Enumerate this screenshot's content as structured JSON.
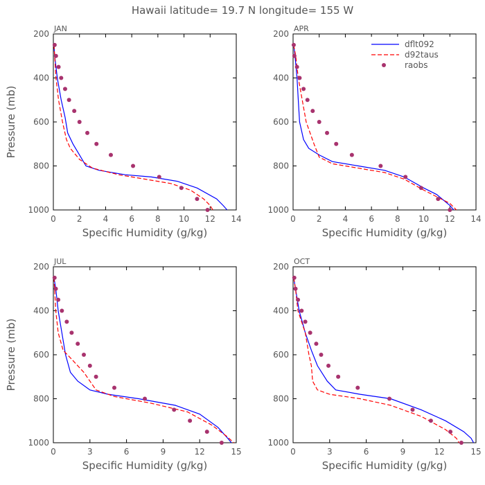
{
  "figure": {
    "title": "Hawaii  latitude= 19.7 N longitude= 155 W",
    "colors": {
      "dflt092": "#0000ff",
      "d92taus": "#ff0000",
      "raobs": "#a8336e"
    }
  },
  "chart_data": [
    {
      "type": "line",
      "month": "JAN",
      "xlabel": "Specific Humidity (g/kg)",
      "ylabel": "Pressure (mb)",
      "xlim": [
        0,
        14
      ],
      "ylim": [
        1000,
        200
      ],
      "xticks": [
        0,
        2,
        4,
        6,
        8,
        10,
        12,
        14
      ],
      "yticks": [
        200,
        400,
        600,
        800,
        1000
      ],
      "show_legend": false,
      "series": [
        {
          "name": "dflt092",
          "style": "solid",
          "points": [
            [
              0.05,
              250
            ],
            [
              0.1,
              300
            ],
            [
              0.3,
              400
            ],
            [
              0.6,
              500
            ],
            [
              0.9,
              580
            ],
            [
              1.1,
              650
            ],
            [
              1.5,
              700
            ],
            [
              2.0,
              750
            ],
            [
              2.5,
              800
            ],
            [
              3.5,
              820
            ],
            [
              5.5,
              840
            ],
            [
              7.5,
              850
            ],
            [
              9.5,
              870
            ],
            [
              11,
              900
            ],
            [
              12.5,
              950
            ],
            [
              13,
              980
            ],
            [
              13.3,
              1000
            ]
          ]
        },
        {
          "name": "d92taus",
          "style": "dashed",
          "points": [
            [
              0.05,
              250
            ],
            [
              0.1,
              300
            ],
            [
              0.2,
              400
            ],
            [
              0.4,
              500
            ],
            [
              0.7,
              600
            ],
            [
              1.0,
              680
            ],
            [
              1.3,
              720
            ],
            [
              2.0,
              770
            ],
            [
              3.0,
              810
            ],
            [
              5.0,
              840
            ],
            [
              7.0,
              860
            ],
            [
              9.0,
              880
            ],
            [
              10.5,
              910
            ],
            [
              11.5,
              950
            ],
            [
              12.0,
              980
            ],
            [
              12.2,
              1000
            ]
          ]
        },
        {
          "name": "raobs",
          "style": "markers",
          "points": [
            [
              0.1,
              250
            ],
            [
              0.2,
              300
            ],
            [
              0.4,
              350
            ],
            [
              0.6,
              400
            ],
            [
              0.9,
              450
            ],
            [
              1.2,
              500
            ],
            [
              1.6,
              550
            ],
            [
              2.0,
              600
            ],
            [
              2.6,
              650
            ],
            [
              3.3,
              700
            ],
            [
              4.4,
              750
            ],
            [
              6.1,
              800
            ],
            [
              8.1,
              850
            ],
            [
              9.8,
              900
            ],
            [
              11.0,
              950
            ],
            [
              11.8,
              1000
            ]
          ]
        }
      ]
    },
    {
      "type": "line",
      "month": "APR",
      "xlabel": "Specific Humidity (g/kg)",
      "ylabel": "",
      "xlim": [
        0,
        14
      ],
      "ylim": [
        1000,
        200
      ],
      "xticks": [
        0,
        2,
        4,
        6,
        8,
        10,
        12,
        14
      ],
      "yticks": [
        200,
        400,
        600,
        800,
        1000
      ],
      "show_legend": true,
      "series": [
        {
          "name": "dflt092",
          "style": "solid",
          "points": [
            [
              0.05,
              250
            ],
            [
              0.15,
              300
            ],
            [
              0.3,
              400
            ],
            [
              0.4,
              500
            ],
            [
              0.5,
              600
            ],
            [
              0.8,
              680
            ],
            [
              1.2,
              720
            ],
            [
              2.0,
              750
            ],
            [
              3.0,
              780
            ],
            [
              5.0,
              800
            ],
            [
              7.0,
              820
            ],
            [
              8.5,
              850
            ],
            [
              10.0,
              900
            ],
            [
              11.0,
              930
            ],
            [
              12.0,
              980
            ],
            [
              12.3,
              1000
            ]
          ]
        },
        {
          "name": "d92taus",
          "style": "dashed",
          "points": [
            [
              0.05,
              250
            ],
            [
              0.2,
              300
            ],
            [
              0.4,
              400
            ],
            [
              0.7,
              500
            ],
            [
              1.0,
              600
            ],
            [
              1.6,
              700
            ],
            [
              2.0,
              760
            ],
            [
              3.0,
              790
            ],
            [
              5.0,
              810
            ],
            [
              7.0,
              830
            ],
            [
              8.5,
              860
            ],
            [
              10.0,
              910
            ],
            [
              11.0,
              940
            ],
            [
              12.0,
              970
            ],
            [
              12.5,
              1000
            ]
          ]
        },
        {
          "name": "raobs",
          "style": "markers",
          "points": [
            [
              0.05,
              250
            ],
            [
              0.1,
              300
            ],
            [
              0.3,
              350
            ],
            [
              0.5,
              400
            ],
            [
              0.8,
              450
            ],
            [
              1.1,
              500
            ],
            [
              1.5,
              550
            ],
            [
              2.0,
              600
            ],
            [
              2.6,
              650
            ],
            [
              3.3,
              700
            ],
            [
              4.5,
              750
            ],
            [
              6.7,
              800
            ],
            [
              8.6,
              850
            ],
            [
              9.8,
              900
            ],
            [
              11.1,
              950
            ],
            [
              12.0,
              1000
            ]
          ]
        }
      ]
    },
    {
      "type": "line",
      "month": "JUL",
      "xlabel": "Specific Humidity (g/kg)",
      "ylabel": "Pressure (mb)",
      "xlim": [
        0,
        15
      ],
      "ylim": [
        1000,
        200
      ],
      "xticks": [
        0,
        3,
        6,
        9,
        12,
        15
      ],
      "yticks": [
        200,
        400,
        600,
        800,
        1000
      ],
      "show_legend": false,
      "series": [
        {
          "name": "dflt092",
          "style": "solid",
          "points": [
            [
              0.05,
              250
            ],
            [
              0.2,
              300
            ],
            [
              0.4,
              400
            ],
            [
              0.7,
              500
            ],
            [
              1.0,
              600
            ],
            [
              1.4,
              680
            ],
            [
              2.0,
              720
            ],
            [
              3.0,
              760
            ],
            [
              4.5,
              780
            ],
            [
              7.0,
              800
            ],
            [
              10.0,
              830
            ],
            [
              12.0,
              870
            ],
            [
              13.5,
              930
            ],
            [
              14.3,
              980
            ],
            [
              14.6,
              1000
            ]
          ]
        },
        {
          "name": "d92taus",
          "style": "dashed",
          "points": [
            [
              0.05,
              250
            ],
            [
              0.1,
              300
            ],
            [
              0.2,
              400
            ],
            [
              0.4,
              500
            ],
            [
              0.8,
              580
            ],
            [
              1.5,
              620
            ],
            [
              2.5,
              680
            ],
            [
              3.5,
              760
            ],
            [
              5.0,
              790
            ],
            [
              8.0,
              820
            ],
            [
              11.0,
              860
            ],
            [
              13.0,
              920
            ],
            [
              14.2,
              970
            ],
            [
              14.8,
              1000
            ]
          ]
        },
        {
          "name": "raobs",
          "style": "markers",
          "points": [
            [
              0.1,
              250
            ],
            [
              0.2,
              300
            ],
            [
              0.4,
              350
            ],
            [
              0.7,
              400
            ],
            [
              1.1,
              450
            ],
            [
              1.5,
              500
            ],
            [
              2.0,
              550
            ],
            [
              2.5,
              600
            ],
            [
              3.0,
              650
            ],
            [
              3.5,
              700
            ],
            [
              5.0,
              750
            ],
            [
              7.5,
              800
            ],
            [
              9.9,
              850
            ],
            [
              11.2,
              900
            ],
            [
              12.6,
              950
            ],
            [
              13.8,
              1000
            ]
          ]
        }
      ]
    },
    {
      "type": "line",
      "month": "OCT",
      "xlabel": "Specific Humidity (g/kg)",
      "ylabel": "",
      "xlim": [
        0,
        15
      ],
      "ylim": [
        1000,
        200
      ],
      "xticks": [
        0,
        3,
        6,
        9,
        12,
        15
      ],
      "yticks": [
        200,
        400,
        600,
        800,
        1000
      ],
      "show_legend": false,
      "series": [
        {
          "name": "dflt092",
          "style": "solid",
          "points": [
            [
              0.05,
              250
            ],
            [
              0.2,
              300
            ],
            [
              0.5,
              400
            ],
            [
              1.0,
              500
            ],
            [
              1.5,
              580
            ],
            [
              2.0,
              650
            ],
            [
              2.8,
              720
            ],
            [
              3.5,
              760
            ],
            [
              5.5,
              780
            ],
            [
              8.0,
              800
            ],
            [
              10.5,
              850
            ],
            [
              12.5,
              900
            ],
            [
              14.0,
              950
            ],
            [
              14.6,
              980
            ],
            [
              14.8,
              1000
            ]
          ]
        },
        {
          "name": "d92taus",
          "style": "dashed",
          "points": [
            [
              0.05,
              250
            ],
            [
              0.2,
              300
            ],
            [
              0.4,
              400
            ],
            [
              0.7,
              450
            ],
            [
              1.0,
              500
            ],
            [
              1.3,
              600
            ],
            [
              1.5,
              650
            ],
            [
              1.6,
              720
            ],
            [
              2.0,
              760
            ],
            [
              3.0,
              780
            ],
            [
              5.5,
              800
            ],
            [
              8.0,
              830
            ],
            [
              10.5,
              880
            ],
            [
              12.5,
              940
            ],
            [
              13.4,
              980
            ],
            [
              13.6,
              1000
            ]
          ]
        },
        {
          "name": "raobs",
          "style": "markers",
          "points": [
            [
              0.1,
              250
            ],
            [
              0.2,
              300
            ],
            [
              0.4,
              350
            ],
            [
              0.7,
              400
            ],
            [
              1.0,
              450
            ],
            [
              1.4,
              500
            ],
            [
              1.9,
              550
            ],
            [
              2.3,
              600
            ],
            [
              2.9,
              650
            ],
            [
              3.7,
              700
            ],
            [
              5.3,
              750
            ],
            [
              7.9,
              800
            ],
            [
              9.8,
              850
            ],
            [
              11.3,
              900
            ],
            [
              12.9,
              950
            ],
            [
              13.8,
              1000
            ]
          ]
        }
      ]
    }
  ]
}
